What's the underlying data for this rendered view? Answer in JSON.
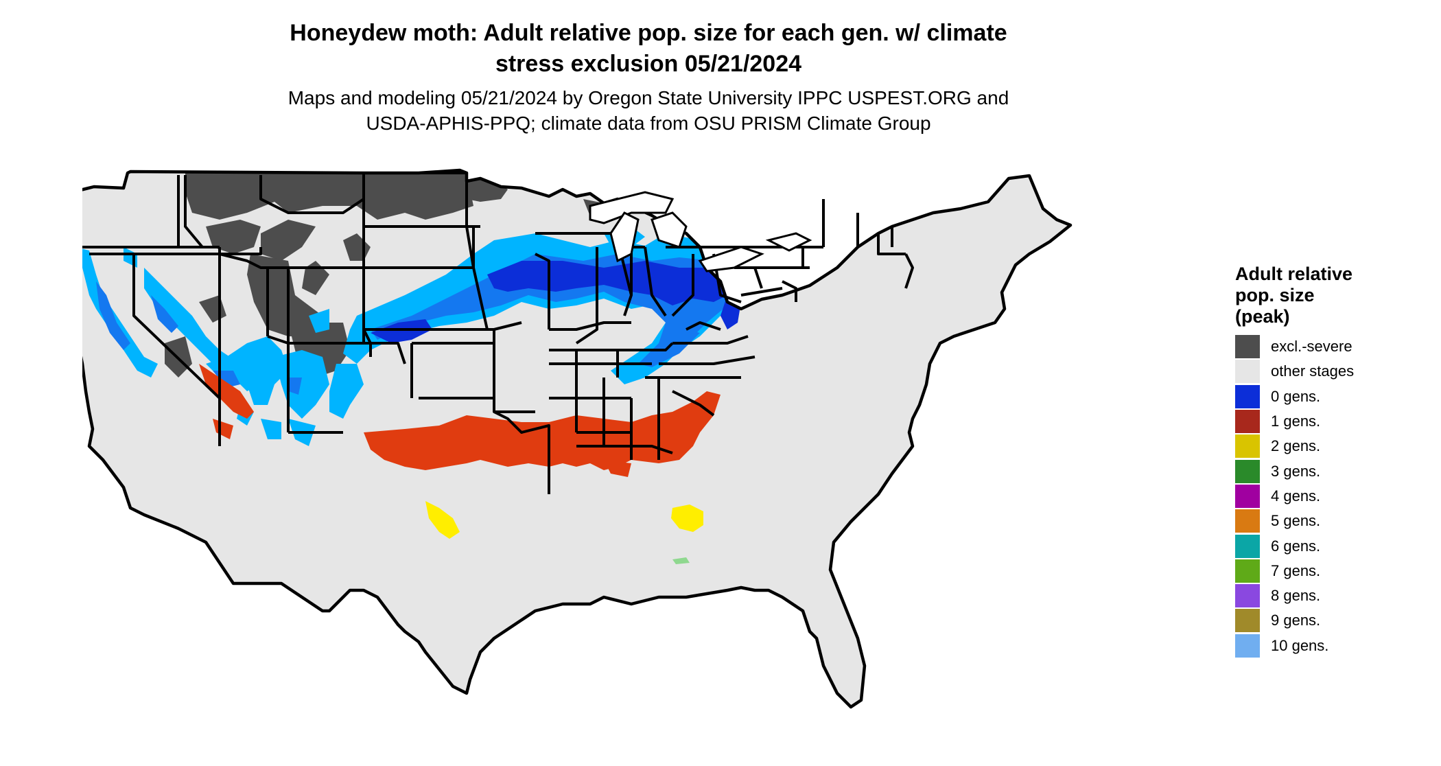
{
  "title": {
    "line1": "Honeydew moth: Adult relative pop. size for each gen. w/ climate",
    "line2": "stress exclusion 05/21/2024"
  },
  "subtitle": {
    "line1": "Maps and modeling 05/21/2024 by Oregon State University IPPC USPEST.ORG and",
    "line2": "USDA-APHIS-PPQ; climate data from OSU PRISM Climate Group"
  },
  "legend": {
    "title_line1": "Adult relative",
    "title_line2": "pop. size",
    "title_line3": "(peak)",
    "items": [
      {
        "label": "excl.-severe",
        "color": "#4d4d4d"
      },
      {
        "label": "other stages",
        "color": "#e6e6e6"
      },
      {
        "label": "0 gens.",
        "color": "#0c2ed8"
      },
      {
        "label": "1 gens.",
        "color": "#a8281c"
      },
      {
        "label": "2 gens.",
        "color": "#d9c400"
      },
      {
        "label": "3 gens.",
        "color": "#2a8a2a"
      },
      {
        "label": "4 gens.",
        "color": "#a000a0"
      },
      {
        "label": "5 gens.",
        "color": "#d97a12"
      },
      {
        "label": "6 gens.",
        "color": "#0ba6a6"
      },
      {
        "label": "7 gens.",
        "color": "#5faa18"
      },
      {
        "label": "8 gens.",
        "color": "#8a48e0"
      },
      {
        "label": "9 gens.",
        "color": "#a08a2a"
      },
      {
        "label": "10 gens.",
        "color": "#70aef0"
      }
    ]
  },
  "map_colors": {
    "base": "#e6e6e6",
    "excluded": "#4d4d4d",
    "light_blue": "#00b4ff",
    "mid_blue": "#1478f0",
    "dark_blue": "#0c2ed8",
    "red": "#e03c10",
    "yellow": "#ffee00",
    "green": "#8fd88f",
    "border": "#000000"
  }
}
